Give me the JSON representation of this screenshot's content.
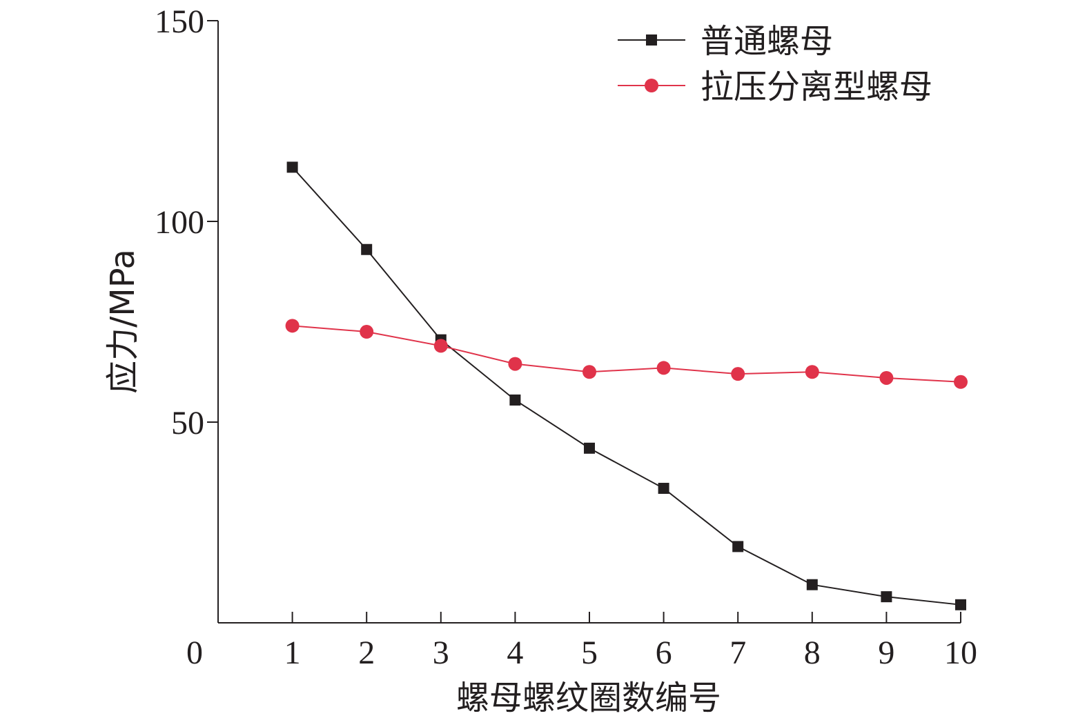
{
  "chart_data": {
    "type": "line",
    "xlabel": "螺母螺纹圈数编号",
    "ylabel": "应力/MPa",
    "xlim": [
      0,
      10
    ],
    "ylim": [
      0,
      150
    ],
    "x": [
      1,
      2,
      3,
      4,
      5,
      6,
      7,
      8,
      9,
      10
    ],
    "x_ticks": [
      "0",
      "1",
      "2",
      "3",
      "4",
      "5",
      "6",
      "7",
      "8",
      "9",
      "10"
    ],
    "y_ticks": [
      "50",
      "100",
      "150"
    ],
    "grid": false,
    "legend_position": "top-right",
    "series": [
      {
        "name": "普通螺母",
        "marker": "square",
        "color": "#231f20",
        "values": [
          113.5,
          93,
          70.5,
          55.5,
          43.5,
          33.5,
          19,
          9.5,
          6.5,
          4.5
        ]
      },
      {
        "name": "拉压分离型螺母",
        "marker": "circle",
        "color": "#e0334a",
        "values": [
          74,
          72.5,
          69,
          64.5,
          62.5,
          63.5,
          62,
          62.5,
          61,
          60
        ]
      }
    ]
  }
}
